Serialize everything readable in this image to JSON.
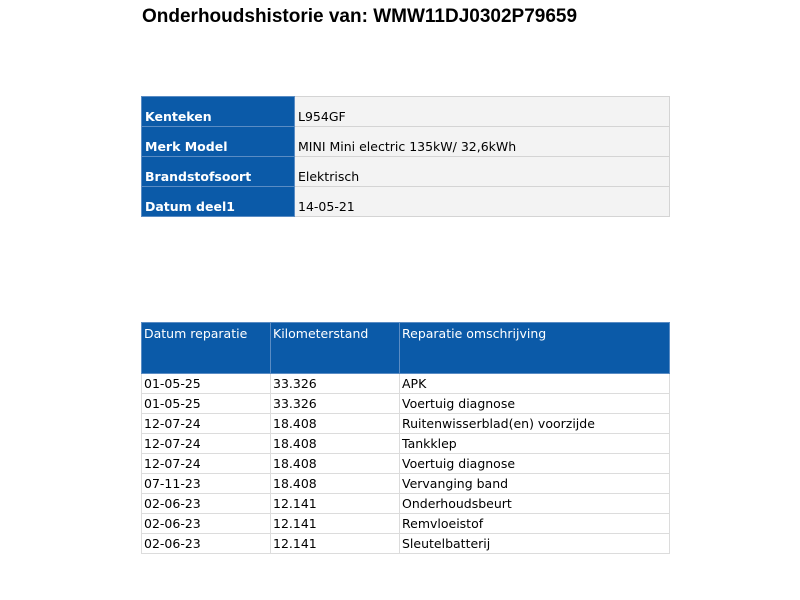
{
  "title": "Onderhoudshistorie van: WMW11DJ0302P79659",
  "info": [
    {
      "label": "Kenteken",
      "value": "L954GF"
    },
    {
      "label": "Merk Model",
      "value": "MINI Mini electric 135kW/ 32,6kWh"
    },
    {
      "label": "Brandstofsoort",
      "value": "Elektrisch"
    },
    {
      "label": "Datum deel1",
      "value": "14-05-21"
    }
  ],
  "repairs": {
    "headers": [
      "Datum reparatie",
      "Kilometerstand",
      "Reparatie omschrijving"
    ],
    "rows": [
      [
        "01-05-25",
        "33.326",
        "APK"
      ],
      [
        "01-05-25",
        "33.326",
        "Voertuig diagnose"
      ],
      [
        "12-07-24",
        "18.408",
        "Ruitenwisserblad(en) voorzijde"
      ],
      [
        "12-07-24",
        "18.408",
        "Tankklep"
      ],
      [
        "12-07-24",
        "18.408",
        "Voertuig diagnose"
      ],
      [
        "07-11-23",
        "18.408",
        "Vervanging band"
      ],
      [
        "02-06-23",
        "12.141",
        "Onderhoudsbeurt"
      ],
      [
        "02-06-23",
        "12.141",
        "Remvloeistof"
      ],
      [
        "02-06-23",
        "12.141",
        "Sleutelbatterij"
      ]
    ]
  },
  "colors": {
    "header_blue": "#0b5aa8"
  }
}
